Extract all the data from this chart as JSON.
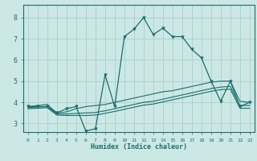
{
  "xlabel": "Humidex (Indice chaleur)",
  "bg_color": "#cce8e4",
  "grid_color": "#aacfca",
  "line_color": "#1a6e6e",
  "xlim": [
    -0.5,
    23.5
  ],
  "ylim": [
    2.6,
    8.6
  ],
  "x": [
    0,
    1,
    2,
    3,
    4,
    5,
    6,
    7,
    8,
    9,
    10,
    11,
    12,
    13,
    14,
    15,
    16,
    17,
    18,
    19,
    20,
    21,
    22,
    23
  ],
  "y_main": [
    3.8,
    3.8,
    3.8,
    3.5,
    3.7,
    3.8,
    2.65,
    2.75,
    5.3,
    3.8,
    7.1,
    7.45,
    8.0,
    7.2,
    7.5,
    7.1,
    7.1,
    6.5,
    6.1,
    5.0,
    4.05,
    5.0,
    3.8,
    4.0
  ],
  "y_line1": [
    3.8,
    3.85,
    3.9,
    3.5,
    3.55,
    3.7,
    3.8,
    3.85,
    3.9,
    4.0,
    4.1,
    4.2,
    4.3,
    4.4,
    4.5,
    4.55,
    4.65,
    4.75,
    4.85,
    4.95,
    5.0,
    5.0,
    4.05,
    4.0
  ],
  "y_line2": [
    3.75,
    3.78,
    3.8,
    3.45,
    3.45,
    3.48,
    3.5,
    3.52,
    3.6,
    3.7,
    3.8,
    3.9,
    4.0,
    4.05,
    4.15,
    4.25,
    4.35,
    4.45,
    4.55,
    4.65,
    4.72,
    4.75,
    3.85,
    3.85
  ],
  "y_line3": [
    3.7,
    3.72,
    3.75,
    3.4,
    3.38,
    3.38,
    3.38,
    3.4,
    3.48,
    3.57,
    3.67,
    3.77,
    3.87,
    3.92,
    4.02,
    4.12,
    4.22,
    4.32,
    4.42,
    4.52,
    4.6,
    4.62,
    3.72,
    3.72
  ]
}
